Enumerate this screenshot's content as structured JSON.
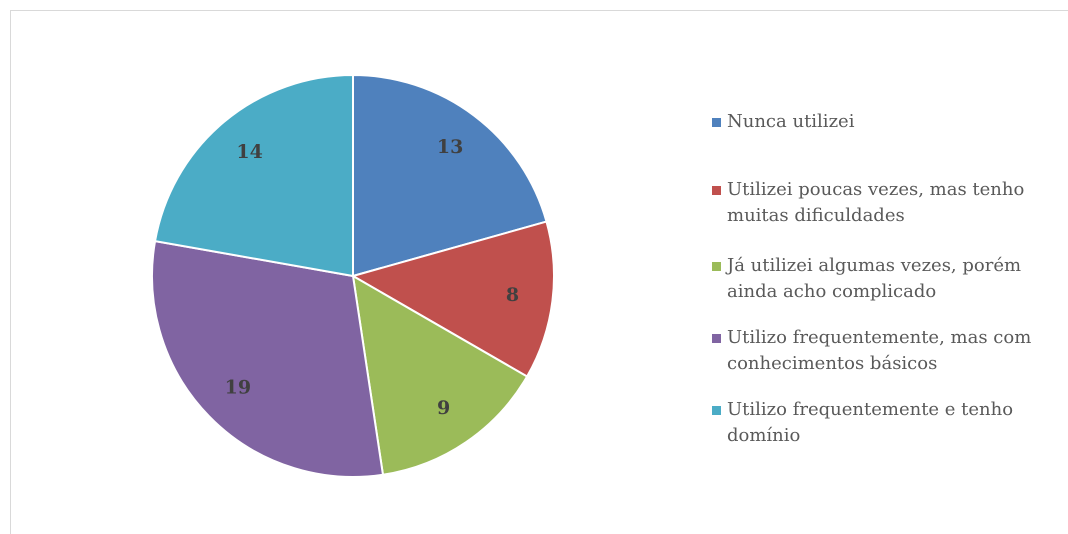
{
  "chart_data": {
    "type": "pie",
    "categories": [
      "Nunca utilizei",
      "Utilizei poucas vezes, mas tenho muitas dificuldades",
      "Já utilizei algumas vezes, porém ainda acho complicado",
      "Utilizo frequentemente, mas com conhecimentos básicos",
      "Utilizo frequentemente e tenho domínio"
    ],
    "values": [
      13,
      8,
      9,
      19,
      14
    ],
    "colors": [
      "#4f81bd",
      "#c0504d",
      "#9bbb59",
      "#8064a2",
      "#4bacc6"
    ],
    "legend": "right"
  }
}
